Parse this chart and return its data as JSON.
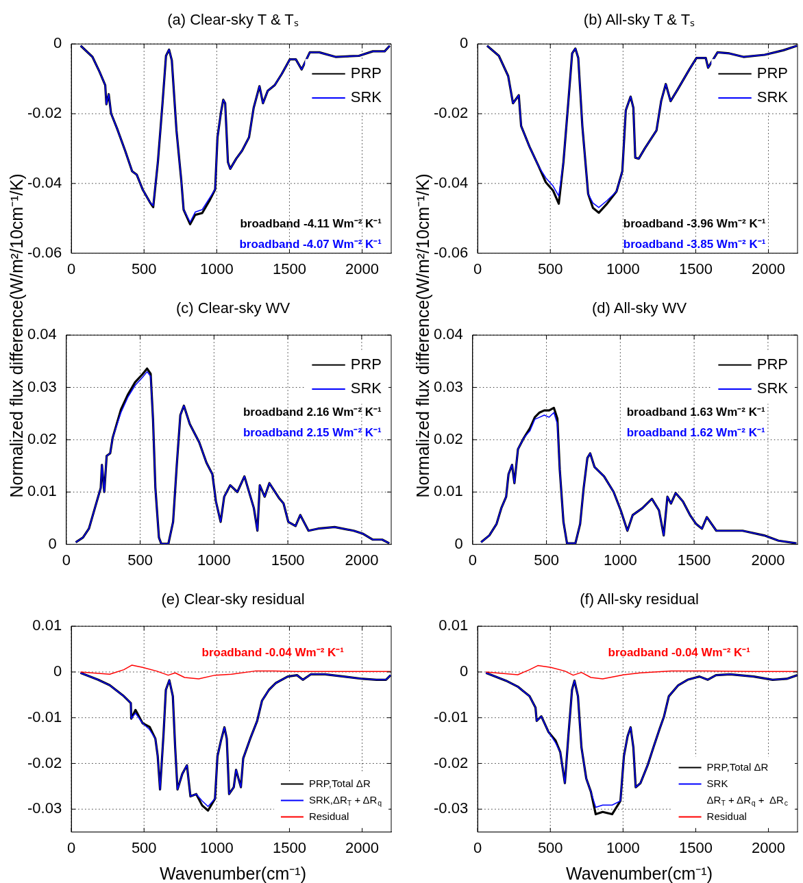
{
  "chart_data": [
    {
      "type": "line",
      "title": "(a) Clear-sky T & Tₛ",
      "xlim": [
        0,
        2200
      ],
      "xticks": [
        0,
        500,
        1000,
        1500,
        2000
      ],
      "ylim": [
        -0.06,
        0
      ],
      "yticks": [
        -0.06,
        -0.04,
        -0.02,
        0
      ],
      "grid": true,
      "legend": "top right",
      "x": [
        64,
        145,
        193,
        233,
        241,
        257,
        273,
        314,
        370,
        418,
        450,
        490,
        539,
        563,
        595,
        627,
        651,
        672,
        691,
        723,
        756,
        772,
        817,
        852,
        900,
        949,
        989,
        1005,
        1029,
        1045,
        1058,
        1077,
        1093,
        1134,
        1174,
        1222,
        1254,
        1294,
        1318,
        1351,
        1399,
        1447,
        1503,
        1544,
        1584,
        1640,
        1705,
        1817,
        1978,
        2074,
        2155,
        2190
      ],
      "series": [
        {
          "name": "PRP",
          "color": "#000000",
          "values": [
            -0.0005,
            -0.0037,
            -0.0079,
            -0.0118,
            -0.0173,
            -0.0144,
            -0.0199,
            -0.0242,
            -0.0306,
            -0.0365,
            -0.0375,
            -0.0417,
            -0.0453,
            -0.0468,
            -0.0339,
            -0.017,
            -0.0034,
            -0.0016,
            -0.0047,
            -0.0248,
            -0.0391,
            -0.0475,
            -0.0517,
            -0.049,
            -0.0485,
            -0.045,
            -0.0417,
            -0.0268,
            -0.0196,
            -0.016,
            -0.017,
            -0.0339,
            -0.0358,
            -0.0329,
            -0.0306,
            -0.0268,
            -0.0183,
            -0.0121,
            -0.017,
            -0.0134,
            -0.0118,
            -0.0086,
            -0.0044,
            -0.0044,
            -0.0073,
            -0.0024,
            -0.0024,
            -0.0037,
            -0.0034,
            -0.0021,
            -0.0021,
            -0.0005
          ]
        },
        {
          "name": "SRK",
          "color": "#0000ff",
          "values": [
            -0.0005,
            -0.0037,
            -0.0079,
            -0.0118,
            -0.0173,
            -0.0144,
            -0.0199,
            -0.0242,
            -0.0306,
            -0.0365,
            -0.0375,
            -0.0417,
            -0.0453,
            -0.0464,
            -0.0339,
            -0.017,
            -0.0034,
            -0.0016,
            -0.0047,
            -0.0248,
            -0.0391,
            -0.0475,
            -0.0511,
            -0.0482,
            -0.0475,
            -0.0443,
            -0.0417,
            -0.0268,
            -0.0196,
            -0.016,
            -0.017,
            -0.0339,
            -0.0358,
            -0.0329,
            -0.0306,
            -0.0268,
            -0.0183,
            -0.0121,
            -0.017,
            -0.0134,
            -0.0118,
            -0.0086,
            -0.0044,
            -0.0044,
            -0.0073,
            -0.0024,
            -0.0024,
            -0.0037,
            -0.0034,
            -0.0021,
            -0.0021,
            -0.0005
          ]
        }
      ],
      "annotations": [
        "broadband -4.11 Wm⁻² K⁻¹",
        "broadband -4.07 Wm⁻² K⁻¹"
      ]
    },
    {
      "type": "line",
      "title": "(b) All-sky T & Tₛ",
      "xlim": [
        0,
        2200
      ],
      "xticks": [
        0,
        500,
        1000,
        1500,
        2000
      ],
      "ylim": [
        -0.06,
        0
      ],
      "yticks": [
        -0.06,
        -0.04,
        -0.02,
        0
      ],
      "grid": true,
      "legend": "top right",
      "x": [
        65,
        146,
        210,
        243,
        283,
        299,
        356,
        421,
        469,
        518,
        558,
        590,
        623,
        650,
        672,
        692,
        720,
        760,
        793,
        833,
        890,
        955,
        995,
        1019,
        1052,
        1071,
        1084,
        1108,
        1149,
        1230,
        1262,
        1294,
        1327,
        1375,
        1456,
        1505,
        1569,
        1585,
        1650,
        1731,
        1828,
        1974,
        2103,
        2197
      ],
      "series": [
        {
          "name": "PRP",
          "color": "#000000",
          "values": [
            -0.0005,
            -0.0034,
            -0.0092,
            -0.017,
            -0.0147,
            -0.0235,
            -0.0294,
            -0.0352,
            -0.0397,
            -0.042,
            -0.0458,
            -0.0339,
            -0.017,
            -0.0027,
            -0.0013,
            -0.004,
            -0.0235,
            -0.043,
            -0.047,
            -0.0484,
            -0.0458,
            -0.0423,
            -0.0365,
            -0.019,
            -0.0151,
            -0.0183,
            -0.0326,
            -0.0329,
            -0.03,
            -0.0248,
            -0.0164,
            -0.0115,
            -0.0164,
            -0.0131,
            -0.0073,
            -0.004,
            -0.004,
            -0.0068,
            -0.0024,
            -0.0027,
            -0.0037,
            -0.0031,
            -0.0018,
            -0.0005
          ]
        },
        {
          "name": "SRK",
          "color": "#0000ff",
          "values": [
            -0.0005,
            -0.0034,
            -0.0092,
            -0.017,
            -0.0147,
            -0.0235,
            -0.0294,
            -0.0352,
            -0.0384,
            -0.0407,
            -0.0436,
            -0.0339,
            -0.017,
            -0.0027,
            -0.0013,
            -0.004,
            -0.0235,
            -0.043,
            -0.0456,
            -0.0469,
            -0.0449,
            -0.0423,
            -0.0365,
            -0.019,
            -0.0151,
            -0.0183,
            -0.0326,
            -0.0329,
            -0.03,
            -0.0248,
            -0.0164,
            -0.0115,
            -0.0164,
            -0.0131,
            -0.0073,
            -0.004,
            -0.004,
            -0.0068,
            -0.0024,
            -0.0027,
            -0.0037,
            -0.0031,
            -0.0018,
            -0.0005
          ]
        }
      ],
      "annotations": [
        "broadband -3.96 Wm⁻² K⁻¹",
        "broadband -3.85 Wm⁻² K⁻¹"
      ]
    },
    {
      "type": "line",
      "title": "(c) Clear-sky WV",
      "ylabel": "Normalized flux difference(W/m²/10cm⁻¹/K)",
      "xlim": [
        0,
        2200
      ],
      "xticks": [
        0,
        500,
        1000,
        1500,
        2000
      ],
      "ylim": [
        0,
        0.04
      ],
      "yticks": [
        0,
        0.01,
        0.02,
        0.03,
        0.04
      ],
      "grid": true,
      "legend": "top right",
      "x": [
        64,
        113,
        153,
        193,
        233,
        241,
        257,
        273,
        297,
        314,
        370,
        418,
        466,
        515,
        547,
        571,
        587,
        603,
        627,
        643,
        691,
        723,
        748,
        772,
        796,
        836,
        900,
        949,
        989,
        1013,
        1045,
        1069,
        1110,
        1158,
        1206,
        1270,
        1294,
        1310,
        1343,
        1375,
        1439,
        1471,
        1503,
        1552,
        1584,
        1640,
        1705,
        1817,
        1946,
        2010,
        2074,
        2139,
        2187
      ],
      "series": [
        {
          "name": "PRP",
          "color": "#000000",
          "values": [
            0.0004,
            0.0013,
            0.003,
            0.0069,
            0.0108,
            0.0152,
            0.01,
            0.0169,
            0.0174,
            0.0204,
            0.0258,
            0.0287,
            0.031,
            0.0325,
            0.0336,
            0.0326,
            0.0239,
            0.0108,
            0.0013,
            0.0001,
            0.0001,
            0.0043,
            0.0152,
            0.0247,
            0.0265,
            0.023,
            0.0195,
            0.0156,
            0.0134,
            0.0082,
            0.0043,
            0.0091,
            0.0113,
            0.01,
            0.013,
            0.0069,
            0.0026,
            0.0113,
            0.0091,
            0.0117,
            0.0089,
            0.0078,
            0.0043,
            0.0035,
            0.0056,
            0.0026,
            0.003,
            0.0033,
            0.0026,
            0.002,
            0.0009,
            0.0009,
            0.0002
          ]
        },
        {
          "name": "SRK",
          "color": "#0000ff",
          "values": [
            0.0004,
            0.0013,
            0.003,
            0.0069,
            0.0108,
            0.0152,
            0.01,
            0.0169,
            0.0174,
            0.0204,
            0.0252,
            0.0282,
            0.0304,
            0.0319,
            0.033,
            0.0321,
            0.0239,
            0.0108,
            0.0013,
            0.0001,
            0.0001,
            0.0043,
            0.0152,
            0.0247,
            0.0265,
            0.023,
            0.0195,
            0.0156,
            0.0134,
            0.0082,
            0.0043,
            0.0091,
            0.0113,
            0.01,
            0.013,
            0.0069,
            0.0026,
            0.0113,
            0.0091,
            0.0117,
            0.0089,
            0.0078,
            0.0043,
            0.0035,
            0.0056,
            0.0026,
            0.003,
            0.0033,
            0.0026,
            0.002,
            0.0009,
            0.0009,
            0.0002
          ]
        }
      ],
      "annotations": [
        "broadband 2.16 Wm⁻² K⁻¹",
        "broadband 2.15 Wm⁻² K⁻¹"
      ]
    },
    {
      "type": "line",
      "title": "(d) All-sky WV",
      "ylabel": "Normalized flux difference(W/m²/10cm⁻¹/K)",
      "xlim": [
        0,
        2200
      ],
      "xticks": [
        0,
        500,
        1000,
        1500,
        2000
      ],
      "ylim": [
        0,
        0.04
      ],
      "yticks": [
        0,
        0.01,
        0.02,
        0.03,
        0.04
      ],
      "grid": true,
      "legend": "top right",
      "x": [
        57,
        113,
        162,
        194,
        227,
        243,
        267,
        283,
        307,
        348,
        388,
        421,
        453,
        485,
        518,
        550,
        574,
        590,
        615,
        639,
        696,
        728,
        752,
        777,
        796,
        825,
        890,
        955,
        1003,
        1048,
        1084,
        1149,
        1214,
        1262,
        1294,
        1319,
        1343,
        1375,
        1424,
        1472,
        1513,
        1553,
        1586,
        1650,
        1731,
        1828,
        1974,
        2071,
        2192
      ],
      "series": [
        {
          "name": "PRP",
          "color": "#000000",
          "values": [
            0.0004,
            0.0017,
            0.0039,
            0.0069,
            0.0091,
            0.0134,
            0.0152,
            0.0117,
            0.0182,
            0.0204,
            0.0222,
            0.0243,
            0.0252,
            0.0256,
            0.0256,
            0.0261,
            0.024,
            0.0143,
            0.0043,
            0.0002,
            0.0002,
            0.0039,
            0.0108,
            0.0165,
            0.0174,
            0.0148,
            0.013,
            0.01,
            0.0065,
            0.0026,
            0.0056,
            0.0069,
            0.0087,
            0.0065,
            0.0017,
            0.0091,
            0.0078,
            0.0098,
            0.0082,
            0.0056,
            0.0039,
            0.003,
            0.0052,
            0.0026,
            0.0026,
            0.0026,
            0.0017,
            0.0007,
            0.0002
          ]
        },
        {
          "name": "SRK",
          "color": "#0000ff",
          "values": [
            0.0004,
            0.0017,
            0.0039,
            0.0069,
            0.0091,
            0.0134,
            0.0152,
            0.0117,
            0.0182,
            0.0204,
            0.0217,
            0.0239,
            0.0243,
            0.0247,
            0.0243,
            0.0252,
            0.023,
            0.0143,
            0.0043,
            0.0002,
            0.0002,
            0.0039,
            0.0108,
            0.0165,
            0.0174,
            0.0148,
            0.013,
            0.01,
            0.0065,
            0.0026,
            0.0056,
            0.0069,
            0.0087,
            0.0065,
            0.0017,
            0.0091,
            0.0078,
            0.0098,
            0.0082,
            0.0056,
            0.0039,
            0.003,
            0.0052,
            0.0026,
            0.0026,
            0.0026,
            0.0017,
            0.0007,
            0.0002
          ]
        }
      ],
      "annotations": [
        "broadband 1.63 Wm⁻² K⁻¹",
        "broadband 1.62 Wm⁻² K⁻¹"
      ]
    },
    {
      "type": "line",
      "title": "(e) Clear-sky residual",
      "xlabel": "Wavenumber(cm⁻¹)",
      "xlim": [
        0,
        2200
      ],
      "xticks": [
        0,
        500,
        1000,
        1500,
        2000
      ],
      "ylim": [
        -0.035,
        0.01
      ],
      "yticks": [
        -0.03,
        -0.02,
        -0.01,
        0,
        0.01
      ],
      "grid": true,
      "legend": "bottom right",
      "series": [
        {
          "name": "PRP,Total ΔR",
          "color": "#000000",
          "x": [
            63,
            184,
            264,
            361,
            409,
            412,
            441,
            490,
            538,
            578,
            594,
            610,
            634,
            650,
            674,
            698,
            714,
            730,
            763,
            795,
            819,
            859,
            900,
            940,
            988,
            1005,
            1029,
            1053,
            1069,
            1085,
            1117,
            1133,
            1166,
            1182,
            1230,
            1278,
            1311,
            1359,
            1407,
            1488,
            1552,
            1592,
            1648,
            1745,
            1874,
            2003,
            2099,
            2164,
            2196
          ],
          "values": [
            -0.0002,
            -0.0017,
            -0.0029,
            -0.0053,
            -0.0068,
            -0.0102,
            -0.0083,
            -0.0112,
            -0.012,
            -0.0146,
            -0.0184,
            -0.0257,
            -0.0136,
            -0.0039,
            -0.0018,
            -0.0053,
            -0.0165,
            -0.0257,
            -0.0223,
            -0.0204,
            -0.0272,
            -0.0267,
            -0.0292,
            -0.0303,
            -0.0277,
            -0.0184,
            -0.015,
            -0.0121,
            -0.0146,
            -0.0267,
            -0.0252,
            -0.0214,
            -0.0252,
            -0.0189,
            -0.0146,
            -0.0107,
            -0.0063,
            -0.0039,
            -0.0024,
            -0.001,
            -0.0007,
            -0.0017,
            -0.0005,
            -0.0005,
            -0.001,
            -0.0015,
            -0.0017,
            -0.0017,
            -0.0007
          ]
        },
        {
          "name": "SRK,ΔR$_{T}$ + ΔR$_{q}$",
          "color": "#0000ff",
          "x": [
            63,
            184,
            264,
            361,
            409,
            412,
            441,
            490,
            538,
            578,
            594,
            610,
            634,
            650,
            674,
            698,
            714,
            730,
            763,
            795,
            819,
            859,
            900,
            940,
            988,
            1005,
            1029,
            1053,
            1069,
            1085,
            1117,
            1133,
            1166,
            1182,
            1230,
            1278,
            1311,
            1359,
            1407,
            1488,
            1552,
            1592,
            1648,
            1745,
            1874,
            2003,
            2099,
            2164,
            2196
          ],
          "values": [
            -0.0002,
            -0.0017,
            -0.0029,
            -0.0053,
            -0.0068,
            -0.0102,
            -0.009,
            -0.0112,
            -0.0126,
            -0.0146,
            -0.0184,
            -0.0257,
            -0.0136,
            -0.0039,
            -0.0018,
            -0.0053,
            -0.0165,
            -0.0257,
            -0.0223,
            -0.0204,
            -0.0272,
            -0.0267,
            -0.0282,
            -0.0294,
            -0.0277,
            -0.0184,
            -0.015,
            -0.0121,
            -0.0146,
            -0.0267,
            -0.0252,
            -0.0214,
            -0.0252,
            -0.0189,
            -0.0146,
            -0.0107,
            -0.0063,
            -0.0039,
            -0.0024,
            -0.001,
            -0.0007,
            -0.0017,
            -0.0005,
            -0.0005,
            -0.001,
            -0.0015,
            -0.0017,
            -0.0017,
            -0.0007
          ]
        },
        {
          "name": "Residual",
          "color": "#ff0000",
          "x": [
            63,
            264,
            361,
            417,
            490,
            586,
            666,
            714,
            779,
            876,
            988,
            1101,
            1262,
            1391,
            1552,
            1874,
            2196
          ],
          "values": [
            0,
            -0.0005,
            0.0005,
            0.0015,
            0.001,
            0.0002,
            -0.0007,
            -0.0002,
            -0.0012,
            -0.0015,
            -0.0007,
            -0.0005,
            0.0002,
            0.0002,
            0.0001,
            0.0001,
            0.0001
          ]
        }
      ],
      "annotations": [
        "broadband -0.04 Wm⁻² K⁻¹"
      ]
    },
    {
      "type": "line",
      "title": "(f) All-sky residual",
      "xlabel": "Wavenumber(cm⁻¹)",
      "xlim": [
        0,
        2200
      ],
      "xticks": [
        0,
        500,
        1000,
        1500,
        2000
      ],
      "ylim": [
        -0.035,
        0.01
      ],
      "yticks": [
        -0.03,
        -0.02,
        -0.01,
        0,
        0.01
      ],
      "grid": true,
      "legend": "bottom right",
      "series": [
        {
          "name": "PRP,Total ΔR",
          "color": "#000000",
          "x": [
            57,
            195,
            276,
            357,
            398,
            406,
            438,
            487,
            536,
            568,
            600,
            625,
            649,
            666,
            690,
            714,
            747,
            779,
            812,
            860,
            925,
            982,
            1006,
            1031,
            1052,
            1071,
            1087,
            1120,
            1169,
            1209,
            1250,
            1282,
            1315,
            1380,
            1444,
            1526,
            1582,
            1639,
            1737,
            1899,
            2029,
            2126,
            2199
          ],
          "values": [
            -0.0002,
            -0.0019,
            -0.0032,
            -0.0053,
            -0.0078,
            -0.0107,
            -0.0097,
            -0.0131,
            -0.015,
            -0.0175,
            -0.0243,
            -0.0136,
            -0.0039,
            -0.0019,
            -0.0053,
            -0.0165,
            -0.0233,
            -0.0262,
            -0.0311,
            -0.0306,
            -0.0311,
            -0.0282,
            -0.0184,
            -0.0141,
            -0.0121,
            -0.0165,
            -0.0252,
            -0.0243,
            -0.0204,
            -0.0165,
            -0.0126,
            -0.0097,
            -0.0053,
            -0.0029,
            -0.0017,
            -0.001,
            -0.0017,
            -0.0007,
            -0.0005,
            -0.001,
            -0.0017,
            -0.0015,
            -0.0007
          ]
        },
        {
          "name": "SRK\nΔR$_{T}$ + ΔR$_{q}$ +  ΔR$_{c}$",
          "color": "#0000ff",
          "x": [
            57,
            195,
            276,
            357,
            398,
            406,
            438,
            487,
            536,
            568,
            600,
            625,
            649,
            666,
            690,
            714,
            747,
            779,
            812,
            860,
            925,
            982,
            1006,
            1031,
            1052,
            1071,
            1087,
            1120,
            1169,
            1209,
            1250,
            1282,
            1315,
            1380,
            1444,
            1526,
            1582,
            1639,
            1737,
            1899,
            2029,
            2126,
            2199
          ],
          "values": [
            -0.0002,
            -0.0019,
            -0.0032,
            -0.0053,
            -0.0078,
            -0.0107,
            -0.0097,
            -0.0131,
            -0.0155,
            -0.0175,
            -0.0243,
            -0.0136,
            -0.0039,
            -0.0019,
            -0.0053,
            -0.0165,
            -0.0233,
            -0.0262,
            -0.0296,
            -0.0291,
            -0.0291,
            -0.0282,
            -0.0184,
            -0.0141,
            -0.0121,
            -0.0165,
            -0.0252,
            -0.0243,
            -0.0204,
            -0.0165,
            -0.0126,
            -0.0097,
            -0.0053,
            -0.0029,
            -0.0017,
            -0.001,
            -0.0017,
            -0.0007,
            -0.0005,
            -0.001,
            -0.0017,
            -0.0015,
            -0.0007
          ]
        },
        {
          "name": "Residual",
          "color": "#ff0000",
          "x": [
            57,
            276,
            357,
            414,
            503,
            600,
            657,
            714,
            779,
            860,
            1006,
            1120,
            1331,
            1574,
            1899,
            2199
          ],
          "values": [
            0,
            -0.0006,
            0.0005,
            0.0014,
            0.001,
            0.0002,
            -0.0007,
            -0.0001,
            -0.0012,
            -0.0015,
            -0.0006,
            -0.0002,
            0.0002,
            0.0002,
            0.0001,
            0.0001
          ]
        }
      ],
      "annotations": [
        "broadband -0.04 Wm⁻² K⁻¹"
      ]
    }
  ]
}
